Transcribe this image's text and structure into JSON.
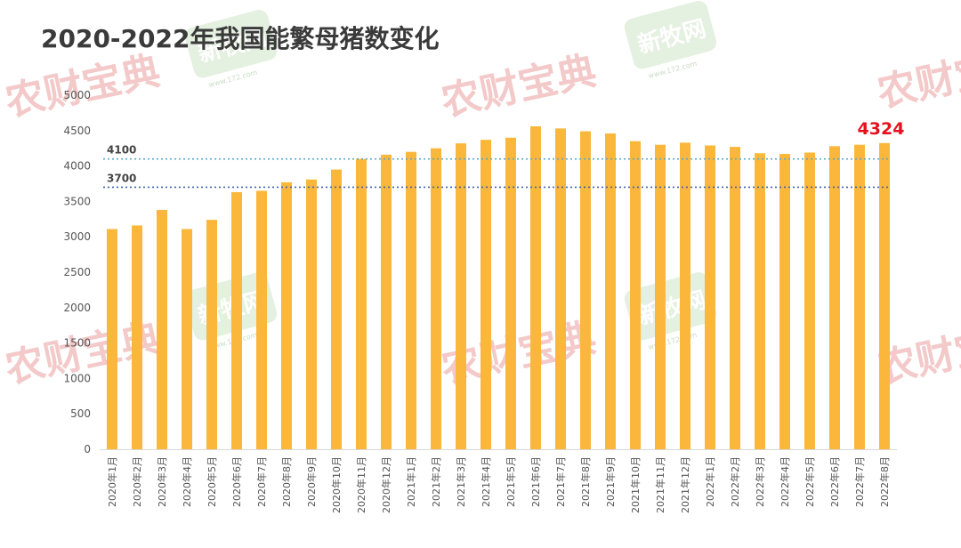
{
  "chart_data": {
    "type": "bar",
    "title": "2020-2022年我国能繁母猪数变化",
    "categories": [
      "2020年1月",
      "2020年2月",
      "2020年3月",
      "2020年4月",
      "2020年5月",
      "2020年6月",
      "2020年7月",
      "2020年8月",
      "2020年9月",
      "2020年10月",
      "2020年11月",
      "2020年12月",
      "2021年1月",
      "2021年2月",
      "2021年3月",
      "2021年4月",
      "2021年5月",
      "2021年6月",
      "2021年7月",
      "2021年8月",
      "2021年9月",
      "2021年10月",
      "2021年11月",
      "2021年12月",
      "2022年1月",
      "2022年2月",
      "2022年3月",
      "2022年4月",
      "2022年5月",
      "2022年6月",
      "2022年7月",
      "2022年8月"
    ],
    "values": [
      3110,
      3160,
      3380,
      3110,
      3240,
      3630,
      3650,
      3770,
      3810,
      3950,
      4100,
      4160,
      4200,
      4250,
      4320,
      4370,
      4400,
      4560,
      4530,
      4490,
      4460,
      4350,
      4300,
      4330,
      4290,
      4270,
      4180,
      4170,
      4190,
      4280,
      4300,
      4324
    ],
    "ylim": [
      0,
      5000
    ],
    "yticks": [
      0,
      500,
      1000,
      1500,
      2000,
      2500,
      3000,
      3500,
      4000,
      4500,
      5000
    ],
    "reference_lines": [
      {
        "label": "4100",
        "value": 4100,
        "color": "#5aa9c9"
      },
      {
        "label": "3700",
        "value": 3700,
        "color": "#3d62a8"
      }
    ],
    "highlight_label": "4324",
    "bar_color": "#fbb73b",
    "highlight_color": "#e8101e",
    "grid": false,
    "legend": "none",
    "xlabel": "",
    "ylabel": ""
  },
  "watermarks": {
    "brand_a": "农财宝典",
    "brand_b": "新牧网",
    "brand_b_url": "www.172.com",
    "brand_a_color": "#f3c9c9",
    "brand_b_color": "#d9ead3"
  }
}
